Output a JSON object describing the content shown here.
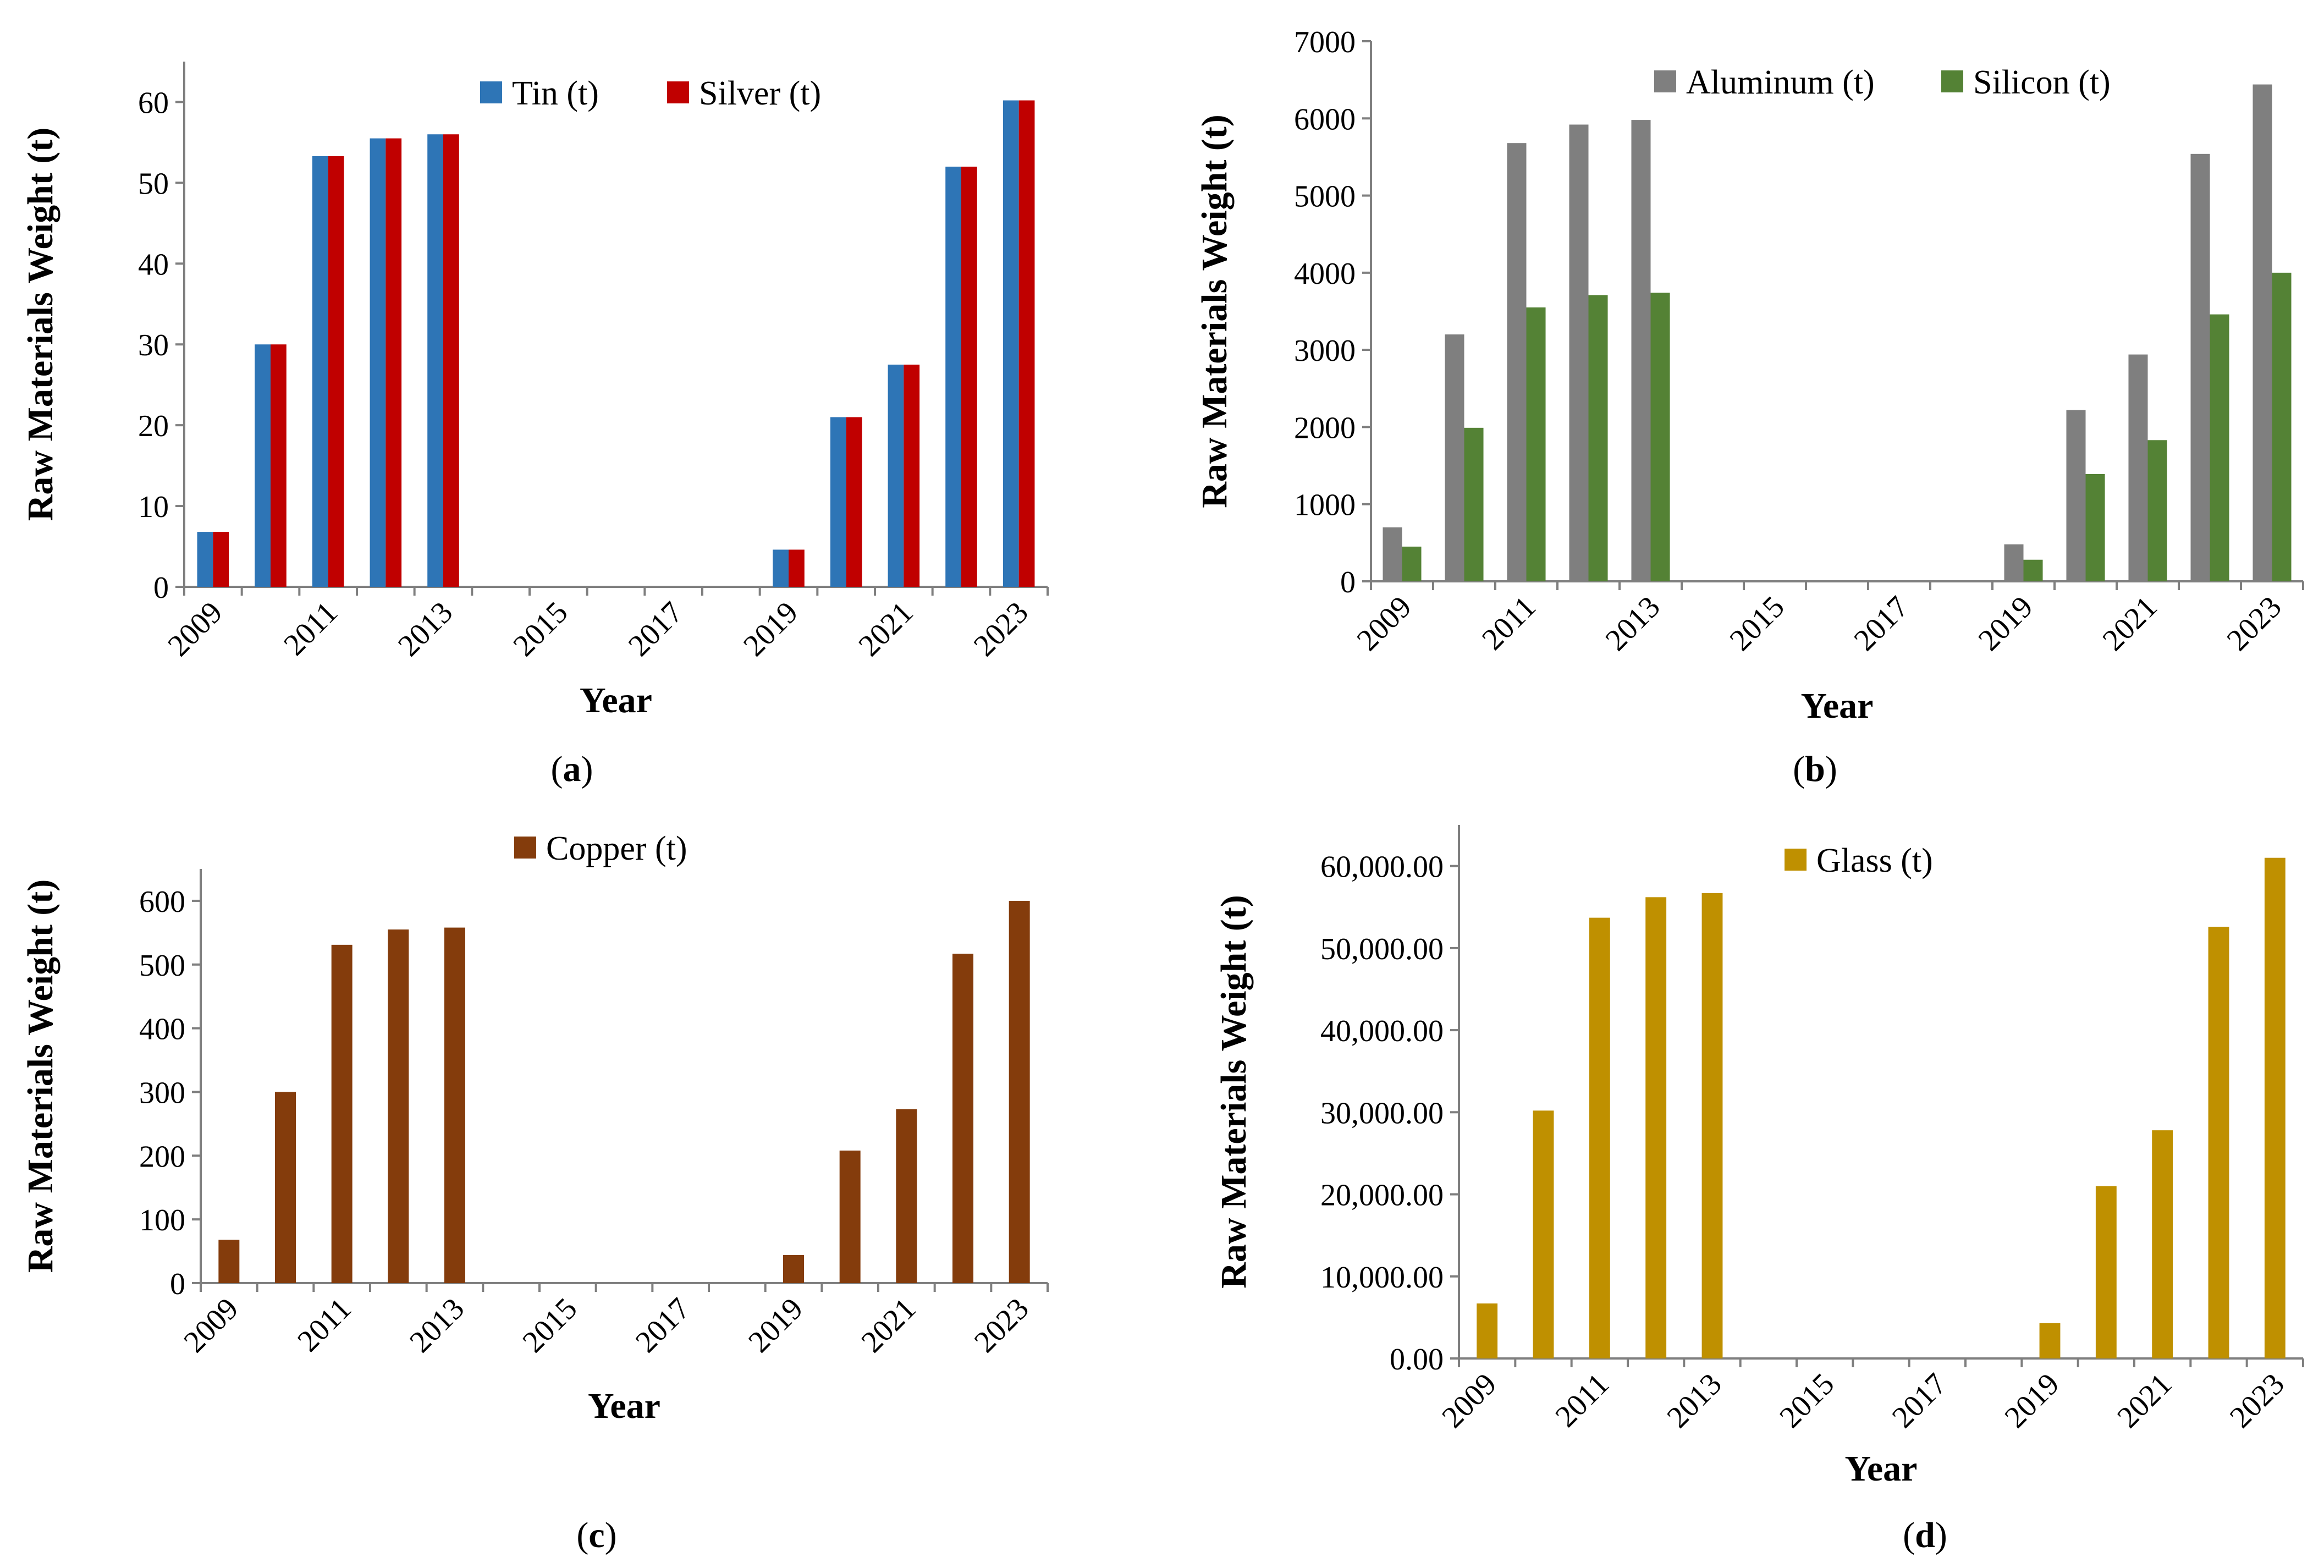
{
  "chart_data": [
    {
      "id": "a",
      "type": "bar",
      "categories": [
        "2009",
        "2010",
        "2011",
        "2012",
        "2013",
        "2014",
        "2015",
        "2016",
        "2017",
        "2018",
        "2019",
        "2020",
        "2021",
        "2022",
        "2023"
      ],
      "xtick_labels": [
        "2009",
        "2011",
        "2013",
        "2015",
        "2017",
        "2019",
        "2021",
        "2023"
      ],
      "series": [
        {
          "name": "Tin (t)",
          "color": "#2e75b6",
          "values": [
            6.8,
            30,
            53.3,
            55.5,
            56,
            0,
            0,
            0,
            0,
            0,
            4.6,
            21,
            27.5,
            52,
            60.2
          ]
        },
        {
          "name": "Silver (t)",
          "color": "#c00000",
          "values": [
            6.8,
            30,
            53.3,
            55.5,
            56,
            0,
            0,
            0,
            0,
            0,
            4.6,
            21,
            27.5,
            52,
            60.2
          ]
        }
      ],
      "ylim": [
        0,
        65
      ],
      "yticks": [
        "0",
        "10",
        "20",
        "30",
        "40",
        "50",
        "60"
      ],
      "xlabel": "Year",
      "ylabel": "Raw Materials Weight (t)",
      "panel_label": "a",
      "legend": "top-right"
    },
    {
      "id": "b",
      "type": "bar",
      "categories": [
        "2009",
        "2010",
        "2011",
        "2012",
        "2013",
        "2014",
        "2015",
        "2016",
        "2017",
        "2018",
        "2019",
        "2020",
        "2021",
        "2022",
        "2023"
      ],
      "xtick_labels": [
        "2009",
        "2011",
        "2013",
        "2015",
        "2017",
        "2019",
        "2021",
        "2023"
      ],
      "series": [
        {
          "name": "Aluminum (t)",
          "color": "#7f7f7f",
          "values": [
            700,
            3200,
            5680,
            5920,
            5980,
            0,
            0,
            0,
            0,
            0,
            480,
            2220,
            2940,
            5540,
            6440
          ]
        },
        {
          "name": "Silicon (t)",
          "color": "#548235",
          "values": [
            450,
            1990,
            3550,
            3710,
            3740,
            0,
            0,
            0,
            0,
            0,
            280,
            1390,
            1830,
            3460,
            4000
          ]
        }
      ],
      "ylim": [
        0,
        7000
      ],
      "yticks": [
        "0",
        "1000",
        "2000",
        "3000",
        "4000",
        "5000",
        "6000",
        "7000"
      ],
      "xlabel": "Year",
      "ylabel": "Raw Materials Weight (t)",
      "panel_label": "b",
      "legend": "top-right"
    },
    {
      "id": "c",
      "type": "bar",
      "categories": [
        "2009",
        "2010",
        "2011",
        "2012",
        "2013",
        "2014",
        "2015",
        "2016",
        "2017",
        "2018",
        "2019",
        "2020",
        "2021",
        "2022",
        "2023"
      ],
      "xtick_labels": [
        "2009",
        "2011",
        "2013",
        "2015",
        "2017",
        "2019",
        "2021",
        "2023"
      ],
      "series": [
        {
          "name": "Copper (t)",
          "color": "#843c0c",
          "values": [
            68,
            300,
            531,
            555,
            558,
            0,
            0,
            0,
            0,
            0,
            44,
            208,
            273,
            517,
            600
          ]
        }
      ],
      "ylim": [
        0,
        650
      ],
      "yticks": [
        "0",
        "100",
        "200",
        "300",
        "400",
        "500",
        "600"
      ],
      "xlabel": "Year",
      "ylabel": "Raw Materials Weight (t)",
      "panel_label": "c",
      "legend": "top-center"
    },
    {
      "id": "d",
      "type": "bar",
      "categories": [
        "2009",
        "2010",
        "2011",
        "2012",
        "2013",
        "2014",
        "2015",
        "2016",
        "2017",
        "2018",
        "2019",
        "2020",
        "2021",
        "2022",
        "2023"
      ],
      "xtick_labels": [
        "2009",
        "2011",
        "2013",
        "2015",
        "2017",
        "2019",
        "2021",
        "2023"
      ],
      "series": [
        {
          "name": "Glass (t)",
          "color": "#bf9000",
          "values": [
            6700,
            30200,
            53700,
            56200,
            56700,
            0,
            0,
            0,
            0,
            0,
            4300,
            21000,
            27800,
            52600,
            61000
          ]
        }
      ],
      "ylim": [
        0,
        65000
      ],
      "yticks": [
        "0.00",
        "10,000.00",
        "20,000.00",
        "30,000.00",
        "40,000.00",
        "50,000.00",
        "60,000.00"
      ],
      "xlabel": "Year",
      "ylabel": "Raw Materials Weight (t)",
      "panel_label": "d",
      "legend": "top-center"
    }
  ]
}
